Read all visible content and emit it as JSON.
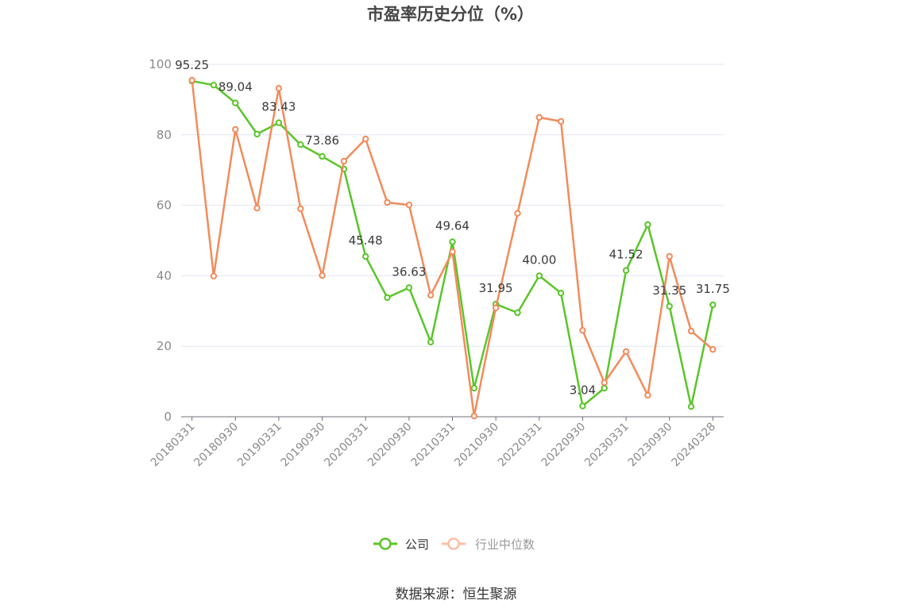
{
  "source": "数据来源：恒生聚源",
  "chart_data": {
    "type": "line",
    "title": "市盈率历史分位（%）",
    "categories": [
      "20180331",
      "",
      "20180930",
      "",
      "20190331",
      "",
      "20190930",
      "",
      "20200331",
      "",
      "20200930",
      "",
      "20210331",
      "",
      "20210930",
      "",
      "20220331",
      "",
      "20220930",
      "",
      "20230331",
      "",
      "20230930",
      "",
      "20240328"
    ],
    "ylim": [
      0,
      100
    ],
    "yticks": [
      0,
      20,
      40,
      60,
      80,
      100
    ],
    "grid": true,
    "legend_position": "bottom",
    "series": [
      {
        "name": "公司",
        "color": "#5ac529",
        "legend_color": "#5ac529",
        "values": [
          95.25,
          94.1,
          89.04,
          80.2,
          83.43,
          77.2,
          73.86,
          70.3,
          45.48,
          33.8,
          36.63,
          21.2,
          49.64,
          8.1,
          31.95,
          29.5,
          40.0,
          35.1,
          3.04,
          8.1,
          41.52,
          54.5,
          31.35,
          2.9,
          31.75
        ],
        "data_labels": [
          "95.25",
          "",
          "89.04",
          "",
          "83.43",
          "",
          "73.86",
          "",
          "45.48",
          "",
          "36.63",
          "",
          "49.64",
          "",
          "31.95",
          "",
          "40.00",
          "",
          "3.04",
          "",
          "41.52",
          "",
          "31.35",
          "",
          "31.75"
        ]
      },
      {
        "name": "行业中位数",
        "color": "#f28b5b",
        "legend_color": "#f9bfa6",
        "values": [
          95.5,
          39.9,
          81.5,
          59.2,
          93.2,
          59.0,
          40.1,
          72.5,
          78.8,
          60.8,
          60.1,
          34.5,
          46.8,
          0.2,
          30.9,
          57.7,
          84.9,
          83.8,
          24.5,
          9.7,
          18.5,
          6.1,
          45.5,
          24.3,
          19.1
        ]
      }
    ]
  }
}
